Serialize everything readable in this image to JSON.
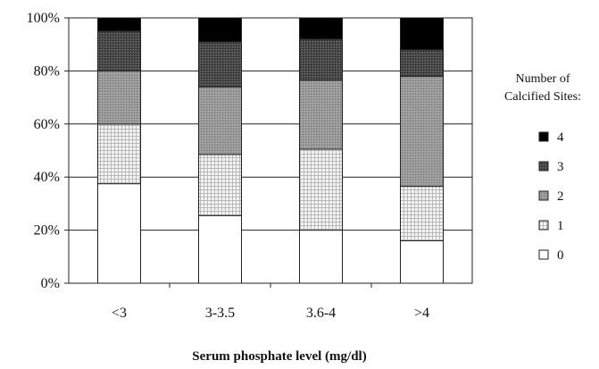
{
  "chart_data": {
    "type": "bar",
    "stacked": true,
    "percent": true,
    "categories": [
      "<3",
      "3-3.5",
      "3.6-4",
      ">4"
    ],
    "series": [
      {
        "name": "0",
        "values": [
          37.5,
          25.5,
          20,
          16
        ],
        "color": "#ffffff",
        "pattern": "none"
      },
      {
        "name": "1",
        "values": [
          22.5,
          23,
          30.5,
          20.5
        ],
        "color": "#e0e0e0",
        "pattern": "grid"
      },
      {
        "name": "2",
        "values": [
          20,
          25.5,
          26,
          41.5
        ],
        "color": "#8c8c8c",
        "pattern": "stipple"
      },
      {
        "name": "3",
        "values": [
          15,
          17,
          15.5,
          10
        ],
        "color": "#444444",
        "pattern": "dark-stipple"
      },
      {
        "name": "4",
        "values": [
          5,
          9,
          8,
          12
        ],
        "color": "#000000",
        "pattern": "solid"
      }
    ],
    "title": "",
    "xlabel": "Serum phosphate level (mg/dl)",
    "ylabel": "",
    "ylim": [
      0,
      100
    ],
    "yticks": [
      "0%",
      "20%",
      "40%",
      "60%",
      "80%",
      "100%"
    ],
    "ytick_values": [
      0,
      20,
      40,
      60,
      80,
      100
    ],
    "grid": true,
    "legend": {
      "title_lines": [
        "Number of",
        "Calcified Sites:"
      ],
      "placement": "right",
      "order": [
        "4",
        "3",
        "2",
        "1",
        "0"
      ]
    }
  }
}
